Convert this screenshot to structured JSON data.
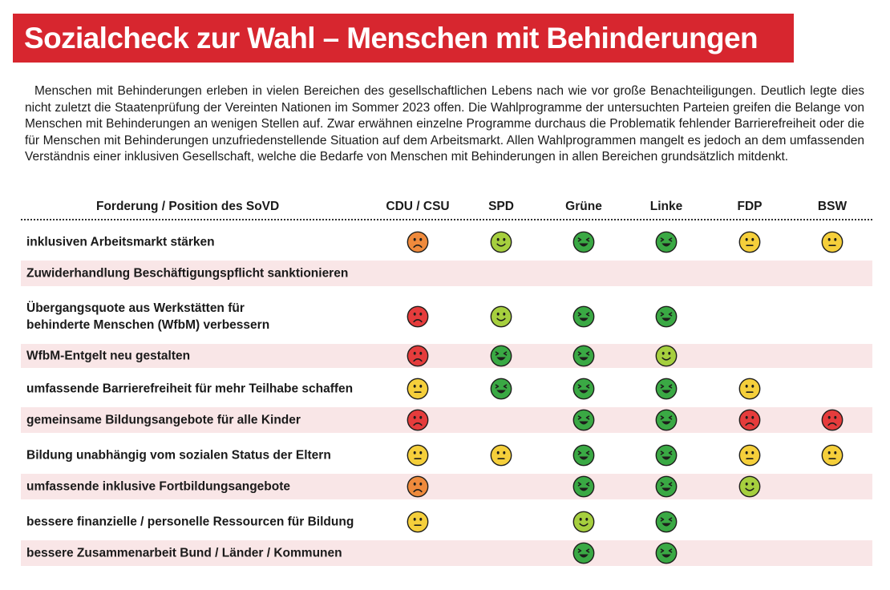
{
  "header": {
    "title": "Sozialcheck zur Wahl – Menschen mit Behinderungen"
  },
  "intro": "Menschen mit Behinderungen erleben in vielen Bereichen des gesellschaftlichen Lebens nach wie vor große Benachteiligungen. Deutlich legte dies nicht zuletzt die Staatenprüfung der Vereinten Nationen im Sommer 2023 offen. Die Wahlprogramme der untersuchten Parteien greifen die Belange von Menschen mit Behinderungen an wenigen Stellen auf. Zwar erwähnen einzelne Programme durchaus die Problematik fehlender Barrierefreiheit oder die für Menschen mit Behinderungen unzufriedenstellende Situation auf dem Arbeitsmarkt. Allen Wahlprogrammen man­gelt es jedoch an dem umfassenden Verständnis einer inklusiven Gesellschaft, welche die Bedarfe von Menschen mit Behinderungen in allen Bereichen grundsätzlich mitdenkt.",
  "table": {
    "column_header": "Forderung / Position des SoVD",
    "parties": [
      "CDU / CSU",
      "SPD",
      "Grüne",
      "Linke",
      "FDP",
      "BSW"
    ],
    "rows": [
      {
        "label": [
          "inklusiven Arbeitsmarkt stärken"
        ],
        "ratings": [
          "orange-sad",
          "lightgreen-smile",
          "green-laugh",
          "green-laugh",
          "yellow-neutral",
          "yellow-neutral"
        ]
      },
      {
        "label": [
          "Zuwiderhandlung Beschäftigungspflicht sanktionieren"
        ],
        "ratings": [
          null,
          null,
          null,
          null,
          null,
          null
        ]
      },
      {
        "label": [
          "Übergangsquote aus Werkstätten für",
          "behinderte Menschen (WfbM) verbessern"
        ],
        "ratings": [
          "red-sad",
          "lightgreen-smile",
          "green-laugh",
          "green-laugh",
          null,
          null
        ]
      },
      {
        "label": [
          "WfbM-Entgelt neu gestalten"
        ],
        "ratings": [
          "red-sad",
          "green-laugh",
          "green-laugh",
          "lightgreen-smile",
          null,
          null
        ]
      },
      {
        "label": [
          "umfassende Barrierefreiheit für mehr Teilhabe schaffen"
        ],
        "ratings": [
          "yellow-neutral",
          "green-laugh",
          "green-laugh",
          "green-laugh",
          "yellow-neutral",
          null
        ]
      },
      {
        "label": [
          "gemeinsame Bildungsangebote für alle Kinder"
        ],
        "ratings": [
          "red-sad",
          null,
          "green-laugh",
          "green-laugh",
          "red-sad",
          "red-sad"
        ]
      },
      {
        "label": [
          "Bildung unabhängig vom sozialen Status der Eltern"
        ],
        "ratings": [
          "yellow-neutral",
          "yellow-neutral",
          "green-laugh",
          "green-laugh",
          "yellow-neutral",
          "yellow-neutral"
        ]
      },
      {
        "label": [
          "umfassende inklusive Fortbildungsangebote"
        ],
        "ratings": [
          "orange-sad",
          null,
          "green-laugh",
          "green-laugh",
          "lightgreen-smile",
          null
        ]
      },
      {
        "label": [
          "bessere finanzielle / personelle Ressourcen für Bildung"
        ],
        "ratings": [
          "yellow-neutral",
          null,
          "lightgreen-smile",
          "green-laugh",
          null,
          null
        ]
      },
      {
        "label": [
          "bessere Zusammenarbeit Bund / Länder / Kommunen"
        ],
        "ratings": [
          null,
          null,
          "green-laugh",
          "green-laugh",
          null,
          null
        ]
      }
    ]
  },
  "colors": {
    "title_bar": "#d7262f",
    "title_text": "#ffffff",
    "row_shade": "#f9e6e7",
    "face_green": "#3aa944",
    "face_lightgreen": "#a6cf3e",
    "face_yellow": "#f5cf3b",
    "face_orange": "#ef8a3c",
    "face_red": "#e53c3c",
    "face_outline": "#1d1d1b"
  }
}
